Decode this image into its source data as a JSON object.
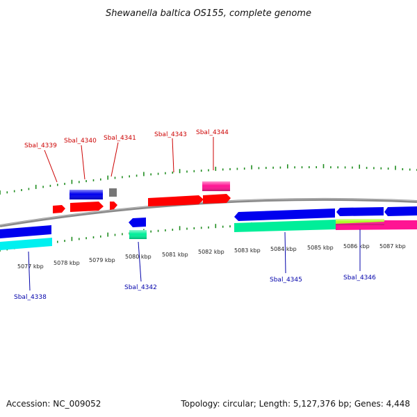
{
  "title": "Shewanella baltica OS155, complete genome",
  "footer": {
    "accession": "Accession: NC_009052",
    "stats": "Topology: circular; Length: 5,127,376 bp; Genes: 4,448"
  },
  "colors": {
    "backbone": "#8a8a8a",
    "tick": "#1e8c1e",
    "forward_label": "#cc0000",
    "reverse_label": "#0000aa",
    "red": "#ff0000",
    "blue": "#0000ee",
    "cyan": "#00f0f0",
    "teal": "#00ee99",
    "magenta": "#ff1493",
    "lime": "#aaff22",
    "gray": "#777777"
  },
  "axis": {
    "unit": "kbp",
    "labels": [
      "5077 kbp",
      "5078 kbp",
      "5079 kbp",
      "5080 kbp",
      "5081 kbp",
      "5082 kbp",
      "5083 kbp",
      "5084 kbp",
      "5085 kbp",
      "5086 kbp",
      "5087 kbp"
    ]
  },
  "genes_forward": [
    "Sbal_4339",
    "Sbal_4340",
    "Sbal_4341",
    "Sbal_4343",
    "Sbal_4344"
  ],
  "genes_reverse": [
    "Sbal_4338",
    "Sbal_4342",
    "Sbal_4345",
    "Sbal_4346"
  ]
}
